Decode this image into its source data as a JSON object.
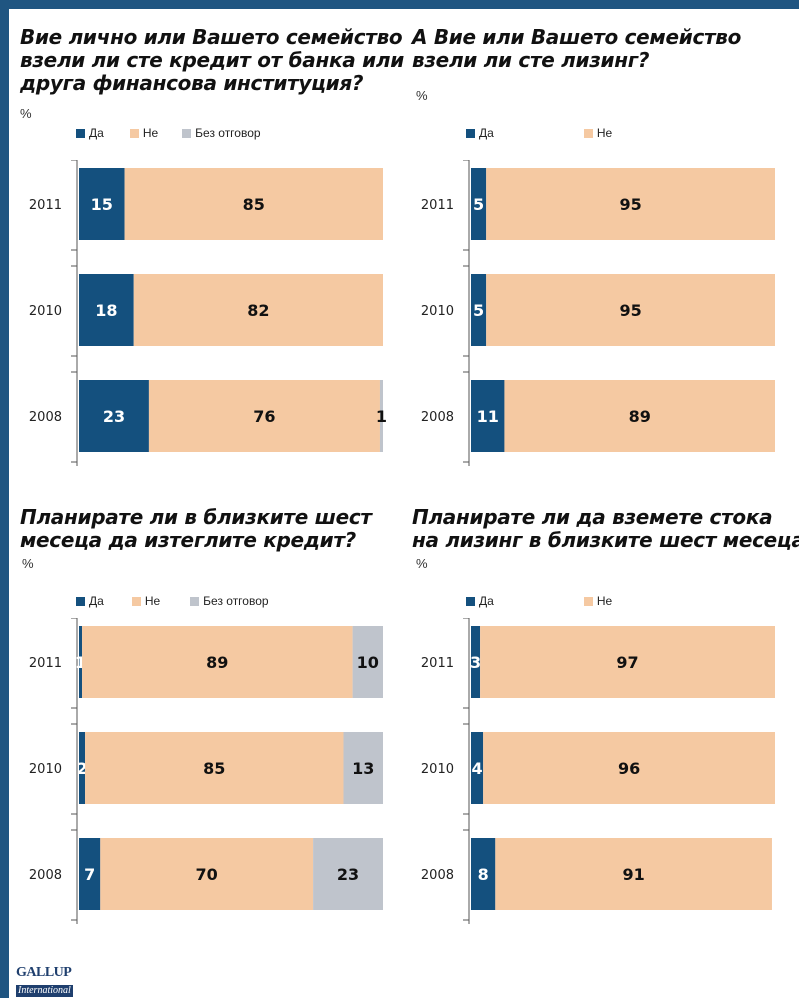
{
  "colors": {
    "yes": "#14507e",
    "no": "#f5c9a2",
    "no_answer": "#bfc4cc",
    "frame": "#1f5581"
  },
  "logo": {
    "top": "GALLUP",
    "bottom": "International"
  },
  "panels": [
    {
      "title_lines": [
        "Вие лично или Вашето семейство",
        "взели ли сте кредит от банка или",
        "друга финансова институция?"
      ],
      "unit": "%",
      "legend": [
        "Да",
        "Не",
        "Без отговор"
      ]
    },
    {
      "title_lines": [
        "А Вие или Вашето семейство",
        "взели ли сте лизинг?"
      ],
      "unit": "%",
      "legend": [
        "Да",
        "Не"
      ]
    },
    {
      "title_lines": [
        "Планирате ли в близките шест",
        "месеца да изтеглите кредит?"
      ],
      "unit": "%",
      "legend": [
        "Да",
        "Не",
        "Без отговор"
      ]
    },
    {
      "title_lines": [
        "Планирате ли да вземете стока",
        "на лизинг в близките шест месеца?"
      ],
      "unit": "%",
      "legend": [
        "Да",
        "Не"
      ]
    }
  ],
  "chart_data": [
    {
      "type": "bar",
      "orientation": "horizontal-stacked",
      "categories": [
        "2011",
        "2010",
        "2008"
      ],
      "series": [
        {
          "name": "Да",
          "values": [
            15,
            18,
            23
          ]
        },
        {
          "name": "Не",
          "values": [
            85,
            82,
            76
          ]
        },
        {
          "name": "Без отговор",
          "values": [
            0,
            0,
            1
          ]
        }
      ],
      "xlim": [
        0,
        100
      ]
    },
    {
      "type": "bar",
      "orientation": "horizontal-stacked",
      "categories": [
        "2011",
        "2010",
        "2008"
      ],
      "series": [
        {
          "name": "Да",
          "values": [
            5,
            5,
            11
          ]
        },
        {
          "name": "Не",
          "values": [
            95,
            95,
            89
          ]
        }
      ],
      "xlim": [
        0,
        100
      ]
    },
    {
      "type": "bar",
      "orientation": "horizontal-stacked",
      "categories": [
        "2011",
        "2010",
        "2008"
      ],
      "series": [
        {
          "name": "Да",
          "values": [
            1,
            2,
            7
          ]
        },
        {
          "name": "Не",
          "values": [
            89,
            85,
            70
          ]
        },
        {
          "name": "Без отговор",
          "values": [
            10,
            13,
            23
          ]
        }
      ],
      "xlim": [
        0,
        100
      ]
    },
    {
      "type": "bar",
      "orientation": "horizontal-stacked",
      "categories": [
        "2011",
        "2010",
        "2008"
      ],
      "series": [
        {
          "name": "Да",
          "values": [
            3,
            4,
            8
          ]
        },
        {
          "name": "Не",
          "values": [
            97,
            96,
            91
          ]
        }
      ],
      "xlim": [
        0,
        100
      ]
    }
  ]
}
